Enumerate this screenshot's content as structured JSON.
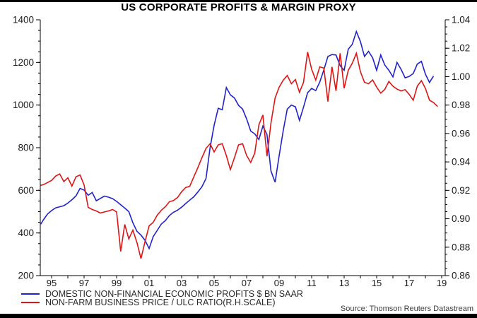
{
  "page": {
    "title": "US CORPORATE PROFITS & MARGIN PROXY",
    "source_note": "Source: Thomson Reuters Datastream",
    "colors": {
      "profits_line": "#2222cc",
      "ulc_line": "#dd1515",
      "axis": "#000000",
      "tick_text": "#1a1a1a",
      "frame_bars": "#000000"
    }
  },
  "legend": [
    {
      "label": "DOMESTIC NON-FINANCIAL ECONOMIC PROFITS $ BN SAAR",
      "color": "#2222cc"
    },
    {
      "label": "NON-FARM BUSINESS PRICE / ULC RATIO(R.H.SCALE)",
      "color": "#dd1515"
    }
  ],
  "chart_data": {
    "type": "line",
    "title": "US CORPORATE PROFITS & MARGIN PROXY",
    "xlabel": "",
    "ylabel_left": "DOMESTIC NON-FINANCIAL ECONOMIC PROFITS $ BN SAAR",
    "ylabel_right": "NON-FARM BUSINESS PRICE / ULC RATIO",
    "x_axis": {
      "type": "year",
      "range": [
        1994.25,
        2019.2
      ],
      "tick_years": [
        1995,
        1996,
        1997,
        1998,
        1999,
        2000,
        2001,
        2002,
        2003,
        2004,
        2005,
        2006,
        2007,
        2008,
        2009,
        2010,
        2011,
        2012,
        2013,
        2014,
        2015,
        2016,
        2017,
        2018,
        2019
      ],
      "labels": [
        "95",
        "97",
        "99",
        "01",
        "03",
        "05",
        "07",
        "09",
        "11",
        "13",
        "15",
        "17",
        "19"
      ],
      "label_years": [
        1995,
        1997,
        1999,
        2001,
        2003,
        2005,
        2007,
        2009,
        2011,
        2013,
        2015,
        2017,
        2019
      ]
    },
    "left_axis": {
      "min": 200,
      "max": 1400,
      "major_step": 200,
      "minor_step": 50,
      "ticks": [
        200,
        400,
        600,
        800,
        1000,
        1200,
        1400
      ]
    },
    "right_axis": {
      "min": 0.86,
      "max": 1.04,
      "major_step": 0.02,
      "minor_step": 0.005,
      "ticks": [
        0.86,
        0.88,
        0.9,
        0.92,
        0.94,
        0.96,
        0.98,
        1.0,
        1.02,
        1.04
      ]
    },
    "grid": false,
    "legend_position": "bottom-left",
    "series": [
      {
        "name": "DOMESTIC NON-FINANCIAL ECONOMIC PROFITS $ BN SAAR",
        "axis": "left",
        "color": "#2222cc",
        "points": [
          [
            1994.25,
            441
          ],
          [
            1994.5,
            462
          ],
          [
            1994.75,
            489
          ],
          [
            1995,
            505
          ],
          [
            1995.25,
            518
          ],
          [
            1995.5,
            523
          ],
          [
            1995.75,
            528
          ],
          [
            1996,
            540
          ],
          [
            1996.25,
            556
          ],
          [
            1996.5,
            574
          ],
          [
            1996.75,
            609
          ],
          [
            1997,
            601
          ],
          [
            1997.25,
            577
          ],
          [
            1997.5,
            590
          ],
          [
            1997.75,
            551
          ],
          [
            1998,
            562
          ],
          [
            1998.25,
            573
          ],
          [
            1998.5,
            568
          ],
          [
            1998.75,
            561
          ],
          [
            1999,
            548
          ],
          [
            1999.25,
            532
          ],
          [
            1999.5,
            517
          ],
          [
            1999.75,
            500
          ],
          [
            2000,
            448
          ],
          [
            2000.25,
            408
          ],
          [
            2000.5,
            390
          ],
          [
            2000.75,
            365
          ],
          [
            2001,
            327
          ],
          [
            2001.25,
            383
          ],
          [
            2001.5,
            412
          ],
          [
            2001.75,
            442
          ],
          [
            2002,
            458
          ],
          [
            2002.25,
            482
          ],
          [
            2002.5,
            497
          ],
          [
            2002.75,
            507
          ],
          [
            2003,
            521
          ],
          [
            2003.25,
            538
          ],
          [
            2003.5,
            554
          ],
          [
            2003.75,
            570
          ],
          [
            2004,
            592
          ],
          [
            2004.25,
            617
          ],
          [
            2004.5,
            655
          ],
          [
            2004.75,
            800
          ],
          [
            2005,
            905
          ],
          [
            2005.25,
            985
          ],
          [
            2005.5,
            978
          ],
          [
            2005.75,
            1082
          ],
          [
            2006,
            1048
          ],
          [
            2006.25,
            1033
          ],
          [
            2006.5,
            999
          ],
          [
            2006.75,
            981
          ],
          [
            2007,
            935
          ],
          [
            2007.25,
            878
          ],
          [
            2007.5,
            865
          ],
          [
            2007.75,
            838
          ],
          [
            2008,
            901
          ],
          [
            2008.25,
            862
          ],
          [
            2008.5,
            690
          ],
          [
            2008.75,
            638
          ],
          [
            2009,
            762
          ],
          [
            2009.25,
            880
          ],
          [
            2009.5,
            981
          ],
          [
            2009.75,
            1000
          ],
          [
            2010,
            992
          ],
          [
            2010.25,
            928
          ],
          [
            2010.5,
            990
          ],
          [
            2010.75,
            1058
          ],
          [
            2011,
            1078
          ],
          [
            2011.25,
            1068
          ],
          [
            2011.5,
            1108
          ],
          [
            2011.75,
            1165
          ],
          [
            2012,
            1228
          ],
          [
            2012.25,
            1237
          ],
          [
            2012.5,
            1235
          ],
          [
            2012.75,
            1185
          ],
          [
            2013,
            1163
          ],
          [
            2013.25,
            1262
          ],
          [
            2013.5,
            1285
          ],
          [
            2013.75,
            1345
          ],
          [
            2014,
            1298
          ],
          [
            2014.25,
            1228
          ],
          [
            2014.5,
            1252
          ],
          [
            2014.75,
            1222
          ],
          [
            2015,
            1163
          ],
          [
            2015.25,
            1235
          ],
          [
            2015.5,
            1188
          ],
          [
            2015.75,
            1163
          ],
          [
            2016,
            1132
          ],
          [
            2016.25,
            1200
          ],
          [
            2016.5,
            1168
          ],
          [
            2016.75,
            1128
          ],
          [
            2017,
            1134
          ],
          [
            2017.25,
            1148
          ],
          [
            2017.5,
            1192
          ],
          [
            2017.75,
            1205
          ],
          [
            2018,
            1145
          ],
          [
            2018.25,
            1106
          ],
          [
            2018.5,
            1136
          ]
        ]
      },
      {
        "name": "NON-FARM BUSINESS PRICE / ULC RATIO(R.H.SCALE)",
        "axis": "right",
        "color": "#dd1515",
        "points": [
          [
            1994.25,
            0.9235
          ],
          [
            1994.5,
            0.924
          ],
          [
            1994.75,
            0.9255
          ],
          [
            1995,
            0.927
          ],
          [
            1995.25,
            0.93
          ],
          [
            1995.5,
            0.9315
          ],
          [
            1995.75,
            0.9262
          ],
          [
            1996,
            0.9288
          ],
          [
            1996.25,
            0.923
          ],
          [
            1996.5,
            0.9295
          ],
          [
            1996.75,
            0.9308
          ],
          [
            1997,
            0.9238
          ],
          [
            1997.25,
            0.908
          ],
          [
            1997.5,
            0.9065
          ],
          [
            1997.75,
            0.9055
          ],
          [
            1998,
            0.904
          ],
          [
            1998.25,
            0.9048
          ],
          [
            1998.5,
            0.9055
          ],
          [
            1998.75,
            0.9065
          ],
          [
            1999,
            0.9048
          ],
          [
            1999.25,
            0.877
          ],
          [
            1999.5,
            0.896
          ],
          [
            1999.75,
            0.8858
          ],
          [
            2000,
            0.892
          ],
          [
            2000.25,
            0.8832
          ],
          [
            2000.5,
            0.872
          ],
          [
            2000.75,
            0.884
          ],
          [
            2001,
            0.895
          ],
          [
            2001.25,
            0.8975
          ],
          [
            2001.5,
            0.9025
          ],
          [
            2001.75,
            0.906
          ],
          [
            2002,
            0.9085
          ],
          [
            2002.25,
            0.912
          ],
          [
            2002.5,
            0.9128
          ],
          [
            2002.75,
            0.915
          ],
          [
            2003,
            0.919
          ],
          [
            2003.25,
            0.922
          ],
          [
            2003.5,
            0.9228
          ],
          [
            2003.75,
            0.9295
          ],
          [
            2004,
            0.936
          ],
          [
            2004.25,
            0.943
          ],
          [
            2004.5,
            0.9495
          ],
          [
            2004.75,
            0.9528
          ],
          [
            2005,
            0.947
          ],
          [
            2005.25,
            0.952
          ],
          [
            2005.5,
            0.9528
          ],
          [
            2005.75,
            0.9445
          ],
          [
            2006,
            0.9346
          ],
          [
            2006.25,
            0.943
          ],
          [
            2006.5,
            0.952
          ],
          [
            2006.75,
            0.9528
          ],
          [
            2007,
            0.9445
          ],
          [
            2007.25,
            0.9396
          ],
          [
            2007.5,
            0.9462
          ],
          [
            2007.75,
            0.966
          ],
          [
            2008,
            0.973
          ],
          [
            2008.25,
            0.944
          ],
          [
            2008.5,
            0.9675
          ],
          [
            2008.75,
            0.985
          ],
          [
            2009,
            0.9925
          ],
          [
            2009.25,
            0.9975
          ],
          [
            2009.5,
            1.0008
          ],
          [
            2009.75,
            0.995
          ],
          [
            2010,
            0.998
          ],
          [
            2010.25,
            0.989
          ],
          [
            2010.5,
            0.996
          ],
          [
            2010.75,
            1.0173
          ],
          [
            2011,
            1.0052
          ],
          [
            2011.25,
            0.9976
          ],
          [
            2011.5,
            1.0069
          ],
          [
            2011.75,
            1.006
          ],
          [
            2012,
            0.9825
          ],
          [
            2012.25,
            1.0069
          ],
          [
            2012.5,
            0.99
          ],
          [
            2012.75,
            1.0165
          ],
          [
            2013,
            0.9918
          ],
          [
            2013.25,
            1.0044
          ],
          [
            2013.5,
            1.0094
          ],
          [
            2013.75,
            1.0165
          ],
          [
            2014,
            1.0035
          ],
          [
            2014.25,
            0.996
          ],
          [
            2014.5,
            0.995
          ],
          [
            2014.75,
            0.9977
          ],
          [
            2015,
            0.9926
          ],
          [
            2015.25,
            0.9884
          ],
          [
            2015.5,
            0.991
          ],
          [
            2015.75,
            0.9966
          ],
          [
            2016,
            0.9933
          ],
          [
            2016.25,
            0.9912
          ],
          [
            2016.5,
            0.99
          ],
          [
            2016.75,
            0.9908
          ],
          [
            2017,
            0.9875
          ],
          [
            2017.25,
            0.9834
          ],
          [
            2017.5,
            0.9933
          ],
          [
            2017.75,
            0.9972
          ],
          [
            2018,
            0.9917
          ],
          [
            2018.25,
            0.9834
          ],
          [
            2018.5,
            0.9817
          ],
          [
            2018.75,
            0.979
          ]
        ]
      }
    ]
  }
}
